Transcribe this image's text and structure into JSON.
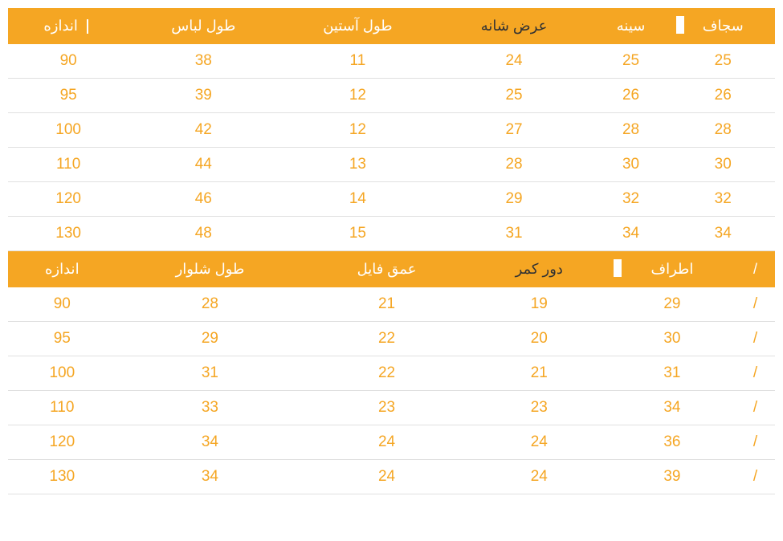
{
  "table1": {
    "headers": [
      {
        "text": "اندازه",
        "cls": "header-cell",
        "accent": "sep-left"
      },
      {
        "text": "طول لباس",
        "cls": "header-cell"
      },
      {
        "text": "طول آستین",
        "cls": "header-cell"
      },
      {
        "text": "عرض شانه",
        "cls": "header-cell dark"
      },
      {
        "text": "سینه",
        "cls": "header-cell"
      },
      {
        "text": "سجاف",
        "cls": "header-cell box-accent"
      }
    ],
    "rows": [
      [
        "90",
        "38",
        "11",
        "24",
        "25",
        "25"
      ],
      [
        "95",
        "39",
        "12",
        "25",
        "26",
        "26"
      ],
      [
        "100",
        "42",
        "12",
        "27",
        "28",
        "28"
      ],
      [
        "110",
        "44",
        "13",
        "28",
        "30",
        "30"
      ],
      [
        "120",
        "46",
        "14",
        "29",
        "32",
        "32"
      ],
      [
        "130",
        "48",
        "15",
        "31",
        "34",
        "34"
      ]
    ]
  },
  "table2": {
    "headers": [
      {
        "text": "اندازه",
        "cls": "header-cell"
      },
      {
        "text": "طول شلوار",
        "cls": "header-cell"
      },
      {
        "text": "عمق فایل",
        "cls": "header-cell"
      },
      {
        "text": "دور کمر",
        "cls": "header-cell dark"
      },
      {
        "text": "اطراف",
        "cls": "header-cell box-accent"
      },
      {
        "text": "/",
        "cls": "header-cell"
      }
    ],
    "rows": [
      [
        "90",
        "28",
        "21",
        "19",
        "29",
        "/"
      ],
      [
        "95",
        "29",
        "22",
        "20",
        "30",
        "/"
      ],
      [
        "100",
        "31",
        "22",
        "21",
        "31",
        "/"
      ],
      [
        "110",
        "33",
        "23",
        "23",
        "34",
        "/"
      ],
      [
        "120",
        "34",
        "24",
        "24",
        "36",
        "/"
      ],
      [
        "130",
        "34",
        "24",
        "24",
        "39",
        "/"
      ]
    ]
  },
  "colors": {
    "header_bg": "#f5a623",
    "header_text": "#ffffff",
    "header_text_dark": "#333333",
    "cell_text": "#f5a623",
    "row_border": "#e0e0e0",
    "background": "#ffffff"
  }
}
